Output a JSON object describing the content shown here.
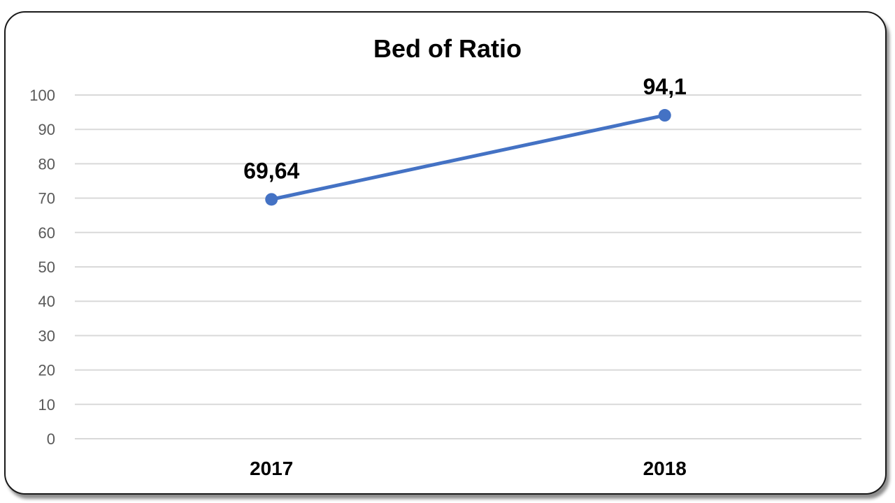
{
  "chart_data": {
    "type": "line",
    "title": "Bed of Ratio",
    "categories": [
      "2017",
      "2018"
    ],
    "series": [
      {
        "values": [
          69.64,
          94.1
        ],
        "labels": [
          "69,64",
          "94,1"
        ]
      }
    ],
    "ylim": [
      0,
      100
    ],
    "yticks": [
      0,
      10,
      20,
      30,
      40,
      50,
      60,
      70,
      80,
      90,
      100
    ],
    "grid": true,
    "legend": "none",
    "line_color": "#4472C4"
  }
}
